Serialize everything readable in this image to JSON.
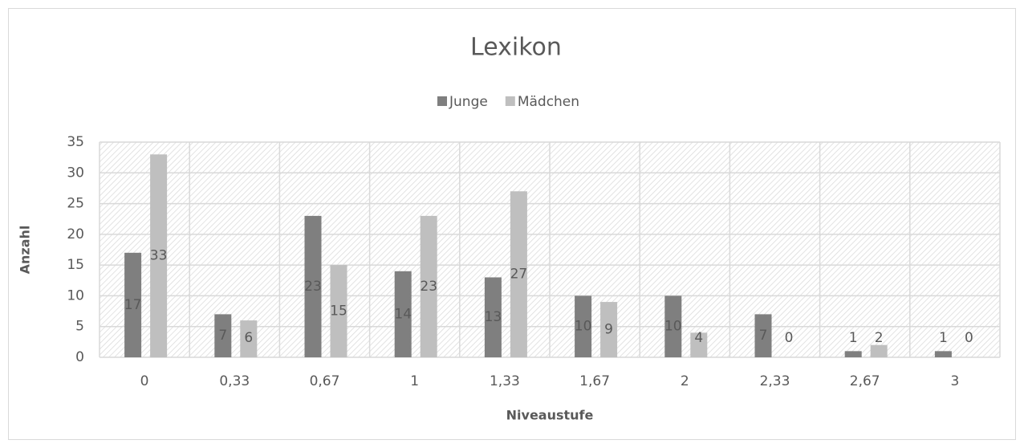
{
  "chart_data": {
    "type": "bar",
    "title": "Lexikon",
    "x_label": "Niveaustufe",
    "y_label": "Anzahl",
    "categories": [
      "0",
      "0,33",
      "0,67",
      "1",
      "1,33",
      "1,67",
      "2",
      "2,33",
      "2,67",
      "3"
    ],
    "series": [
      {
        "name": "Junge",
        "color": "#7f7f7f",
        "values": [
          17,
          7,
          23,
          14,
          13,
          10,
          10,
          7,
          1,
          1
        ]
      },
      {
        "name": "Mädchen",
        "color": "#bfbfbf",
        "values": [
          33,
          6,
          15,
          23,
          27,
          9,
          4,
          0,
          2,
          0
        ]
      }
    ],
    "ylim": [
      0,
      35
    ],
    "yticks": [
      0,
      5,
      10,
      15,
      20,
      25,
      30,
      35
    ],
    "grid": true,
    "legend": "top"
  }
}
